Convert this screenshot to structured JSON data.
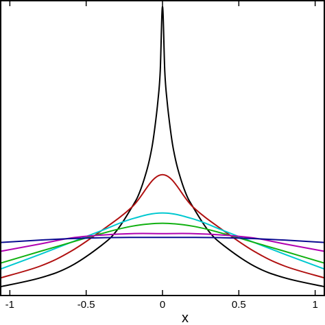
{
  "chart_data": {
    "type": "line",
    "xlabel": "x",
    "ylabel": "",
    "title": "",
    "xlim": [
      -1.06,
      1.06
    ],
    "ylim": [
      0,
      1
    ],
    "xticks": [
      -1,
      -0.5,
      0,
      0.5,
      1
    ],
    "xtick_labels": [
      "-1",
      "-0.5",
      "0",
      "0.5",
      "1"
    ],
    "grid": false,
    "series": [
      {
        "color": "#000000",
        "x": [
          -1.06,
          -0.8,
          -0.6,
          -0.4,
          -0.3,
          -0.2,
          -0.15,
          -0.1,
          -0.07,
          -0.05,
          -0.03,
          -0.015,
          0,
          0.015,
          0.03,
          0.05,
          0.07,
          0.1,
          0.15,
          0.2,
          0.3,
          0.4,
          0.6,
          0.8,
          1.06
        ],
        "y": [
          0.03,
          0.06,
          0.1,
          0.17,
          0.22,
          0.3,
          0.35,
          0.43,
          0.5,
          0.57,
          0.66,
          0.76,
          0.98,
          0.76,
          0.66,
          0.57,
          0.5,
          0.43,
          0.35,
          0.3,
          0.22,
          0.17,
          0.1,
          0.06,
          0.03
        ]
      },
      {
        "color": "#b01010",
        "x": [
          -1.06,
          -0.8,
          -0.6,
          -0.4,
          -0.2,
          0,
          0.2,
          0.4,
          0.6,
          0.8,
          1.06
        ],
        "y": [
          0.06,
          0.1,
          0.15,
          0.22,
          0.3,
          0.41,
          0.3,
          0.22,
          0.15,
          0.1,
          0.06
        ]
      },
      {
        "color": "#00c8d0",
        "x": [
          -1.06,
          -0.8,
          -0.6,
          -0.4,
          -0.2,
          0,
          0.2,
          0.4,
          0.6,
          0.8,
          1.06
        ],
        "y": [
          0.09,
          0.14,
          0.18,
          0.22,
          0.26,
          0.28,
          0.26,
          0.22,
          0.18,
          0.14,
          0.09
        ]
      },
      {
        "color": "#10b010",
        "x": [
          -1.06,
          -0.8,
          -0.6,
          -0.4,
          -0.2,
          0,
          0.2,
          0.4,
          0.6,
          0.8,
          1.06
        ],
        "y": [
          0.11,
          0.15,
          0.18,
          0.21,
          0.235,
          0.245,
          0.235,
          0.21,
          0.18,
          0.15,
          0.11
        ]
      },
      {
        "color": "#b000b0",
        "x": [
          -1.06,
          -0.8,
          -0.6,
          -0.4,
          -0.2,
          0,
          0.2,
          0.4,
          0.6,
          0.8,
          1.06
        ],
        "y": [
          0.15,
          0.175,
          0.195,
          0.205,
          0.21,
          0.21,
          0.21,
          0.205,
          0.195,
          0.175,
          0.15
        ]
      },
      {
        "color": "#0a0a90",
        "x": [
          -1.06,
          -0.8,
          -0.6,
          -0.4,
          -0.2,
          0,
          0.2,
          0.4,
          0.6,
          0.8,
          1.06
        ],
        "y": [
          0.18,
          0.188,
          0.193,
          0.196,
          0.197,
          0.197,
          0.197,
          0.196,
          0.193,
          0.188,
          0.18
        ]
      }
    ]
  }
}
